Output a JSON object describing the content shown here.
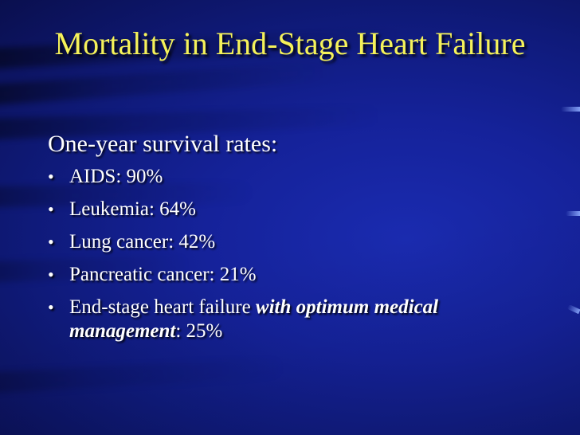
{
  "slide": {
    "title": "Mortality in End-Stage Heart Failure",
    "subheading": "One-year survival rates:",
    "bullet_glyph": "•",
    "bullets": [
      {
        "text": "AIDS: 90%"
      },
      {
        "text": "Leukemia: 64%"
      },
      {
        "text": "Lung cancer: 42%"
      },
      {
        "text": "Pancreatic cancer: 21%"
      },
      {
        "prefix": "End-stage heart failure ",
        "emphasis_1": "with optimum medical",
        "space": " ",
        "emphasis_2": "management",
        "suffix": ": 25%"
      }
    ]
  },
  "colors": {
    "background": "#15229a",
    "title": "#f5f25a",
    "body_text": "#ffffff"
  }
}
